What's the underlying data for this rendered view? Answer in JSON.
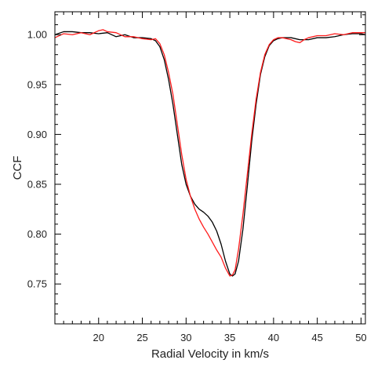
{
  "chart_data": {
    "type": "line",
    "title": "",
    "xlabel": "Radial Velocity in km/s",
    "ylabel": "CCF",
    "xlim": [
      15,
      50.5
    ],
    "ylim": [
      0.71,
      1.023
    ],
    "xticks": [
      20,
      25,
      30,
      35,
      40,
      45,
      50
    ],
    "xtick_labels": [
      "20",
      "25",
      "30",
      "35",
      "40",
      "45",
      "50"
    ],
    "yticks": [
      0.75,
      0.8,
      0.85,
      0.9,
      0.95,
      1.0
    ],
    "ytick_labels": [
      "0.75",
      "0.80",
      "0.85",
      "0.90",
      "0.95",
      "1.00"
    ],
    "grid": false,
    "legend": "none",
    "series": [
      {
        "color": "#000000",
        "x": [
          15,
          16,
          17,
          18,
          19,
          20,
          21,
          22,
          23,
          24,
          25,
          26,
          26.5,
          27,
          27.5,
          28,
          28.5,
          29,
          29.5,
          30,
          30.5,
          31,
          31.5,
          32,
          32.5,
          33,
          33.5,
          34,
          34.5,
          35,
          35.3,
          35.6,
          36,
          36.5,
          37,
          37.5,
          38,
          38.5,
          39,
          39.5,
          40,
          40.5,
          41,
          42,
          43,
          44,
          45,
          46,
          47,
          48,
          49,
          50,
          50.5
        ],
        "y": [
          1.0,
          1.003,
          1.003,
          1.002,
          1.002,
          1.001,
          1.002,
          0.998,
          1.0,
          0.997,
          0.997,
          0.996,
          0.994,
          0.988,
          0.975,
          0.955,
          0.93,
          0.9,
          0.87,
          0.85,
          0.838,
          0.83,
          0.825,
          0.822,
          0.818,
          0.812,
          0.803,
          0.79,
          0.773,
          0.76,
          0.758,
          0.76,
          0.773,
          0.805,
          0.848,
          0.893,
          0.93,
          0.96,
          0.978,
          0.989,
          0.994,
          0.996,
          0.997,
          0.997,
          0.995,
          0.995,
          0.997,
          0.997,
          0.998,
          1.0,
          1.001,
          1.001,
          1.0
        ]
      },
      {
        "color": "#ff1a1a",
        "x": [
          15,
          16,
          17,
          18,
          19,
          20,
          20.5,
          21,
          22,
          23,
          24,
          25,
          26,
          26.5,
          27,
          27.5,
          28,
          28.5,
          29,
          29.5,
          30,
          30.5,
          31,
          31.5,
          32,
          32.5,
          33,
          33.5,
          34,
          34.5,
          35,
          35.3,
          35.6,
          36,
          36.5,
          37,
          37.5,
          38,
          38.5,
          39,
          39.5,
          40,
          40.5,
          41,
          42,
          42.5,
          43,
          43.5,
          44,
          45,
          46,
          47,
          48,
          49,
          50,
          50.5
        ],
        "y": [
          0.997,
          1.001,
          1.0,
          1.002,
          1.0,
          1.004,
          1.005,
          1.003,
          1.002,
          0.998,
          0.998,
          0.996,
          0.995,
          0.996,
          0.991,
          0.98,
          0.962,
          0.94,
          0.91,
          0.88,
          0.855,
          0.838,
          0.825,
          0.815,
          0.807,
          0.8,
          0.792,
          0.784,
          0.777,
          0.766,
          0.758,
          0.759,
          0.764,
          0.785,
          0.82,
          0.86,
          0.9,
          0.935,
          0.962,
          0.98,
          0.99,
          0.995,
          0.997,
          0.997,
          0.995,
          0.993,
          0.992,
          0.995,
          0.997,
          0.999,
          0.999,
          1.001,
          1.0,
          1.002,
          1.002,
          1.002
        ]
      }
    ]
  }
}
